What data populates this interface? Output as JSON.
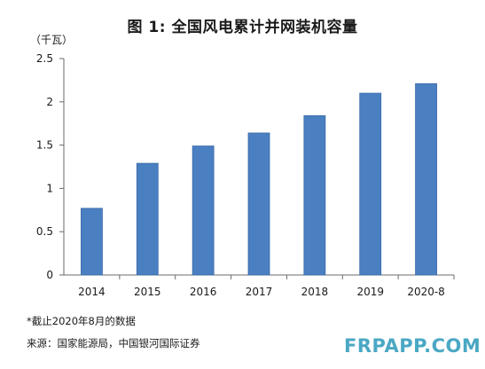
{
  "title": "图 1: 全国风电累计并网装机容量",
  "unit": "（千瓦）",
  "note": "*截止2020年8月的数据",
  "source": "来源：国家能源局，中国银河国际证券",
  "watermark": "FRPAPP.COM",
  "colors": {
    "bar": "#4a7fc1",
    "bar_edge": "#3b6aa8",
    "axis": "#6b6b6b"
  },
  "chart_data": {
    "type": "bar",
    "title": "图 1: 全国风电累计并网装机容量",
    "ylabel": "（千瓦）",
    "xlabel": "",
    "categories": [
      "2014",
      "2015",
      "2016",
      "2017",
      "2018",
      "2019",
      "2020-8"
    ],
    "values": [
      0.77,
      1.29,
      1.49,
      1.64,
      1.84,
      2.1,
      2.21
    ],
    "ylim": [
      0,
      2.5
    ],
    "yticks": [
      "0",
      "0.5",
      "1",
      "1.5",
      "2",
      "2.5"
    ],
    "grid": false,
    "legend": "none"
  }
}
